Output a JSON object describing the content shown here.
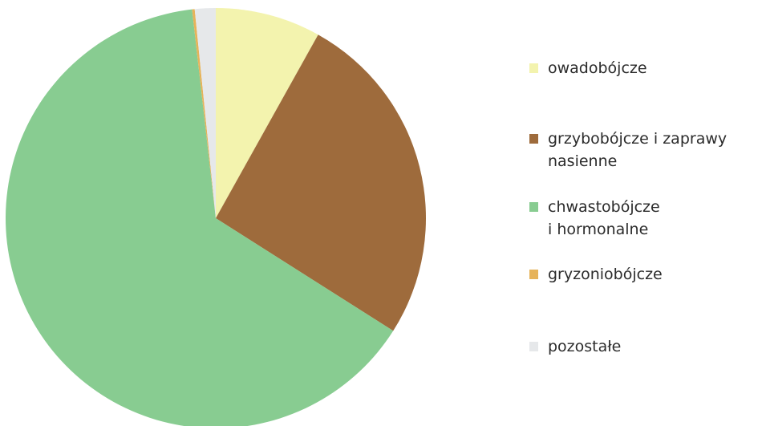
{
  "chart_data": {
    "type": "pie",
    "categories": [
      "owadobójcze",
      "grzybobójcze i zaprawy\nnasienne",
      "chwastobójcze\ni hormonalne",
      "gryzoniobójcze",
      "pozostałe"
    ],
    "values": [
      8.1,
      25.9,
      64.2,
      0.2,
      1.6
    ],
    "colors": [
      "#f3f3ae",
      "#9e6b3c",
      "#88cc91",
      "#e6b35a",
      "#e6e8ea"
    ]
  }
}
